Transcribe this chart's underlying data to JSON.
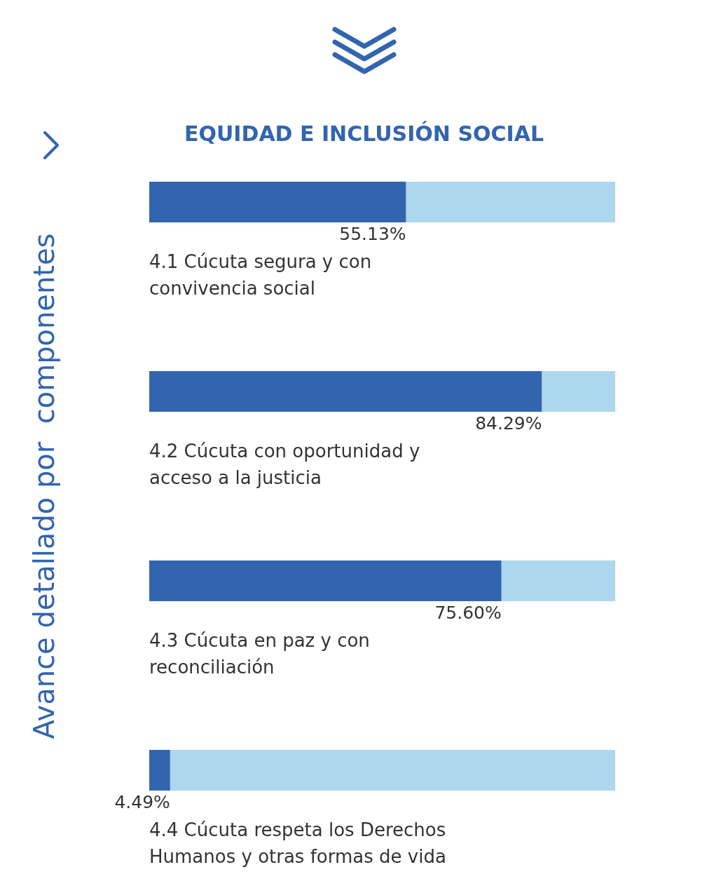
{
  "chart_data": {
    "type": "bar",
    "orientation": "horizontal",
    "stacked": true,
    "title": "EQUIDAD E INCLUSIÓN SOCIAL",
    "ylabel": "Avance detallado por  componentes",
    "categories": [
      "4.1 Cúcuta segura y con convivencia social",
      "4.2 Cúcuta con oportunidad y acceso a la justicia",
      "4.3 Cúcuta en paz y con reconciliación",
      "4.4 Cúcuta respeta los Derechos Humanos y otras formas de vida"
    ],
    "series": [
      {
        "color": "#3265ae",
        "values": [
          55.13,
          84.29,
          75.6,
          4.49
        ],
        "value_labels": [
          "55.13%",
          "84.29%",
          "75.60%",
          "4.49%"
        ]
      },
      {
        "color": "#acd7ec",
        "values": [
          44.87,
          15.71,
          24.4,
          95.51
        ]
      }
    ],
    "xlim": [
      0,
      100
    ],
    "tick_labels": "y",
    "grid": false
  }
}
